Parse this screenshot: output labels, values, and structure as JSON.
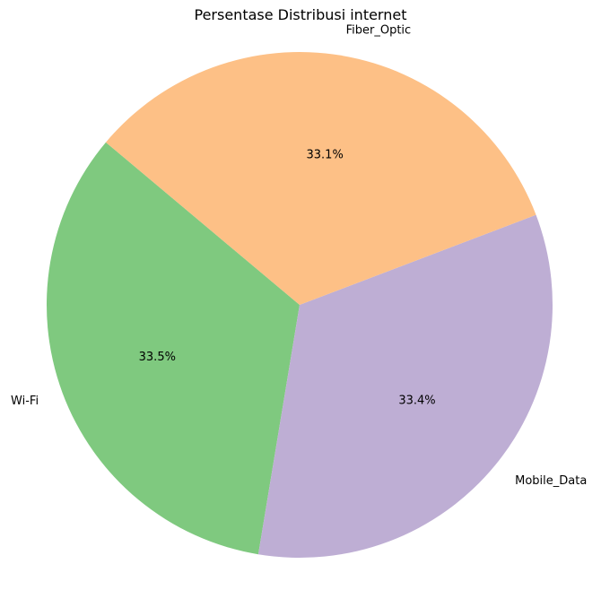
{
  "chart_data": {
    "type": "pie",
    "title": "Persentase Distribusi internet",
    "slices": [
      {
        "label": "Wi-Fi",
        "value": 33.5,
        "pct_label": "33.5%",
        "color": "#7fc97f"
      },
      {
        "label": "Mobile_Data",
        "value": 33.4,
        "pct_label": "33.4%",
        "color": "#beaed4"
      },
      {
        "label": "Fiber_Optic",
        "value": 33.1,
        "pct_label": "33.1%",
        "color": "#fdc086"
      }
    ],
    "legend": "none"
  }
}
